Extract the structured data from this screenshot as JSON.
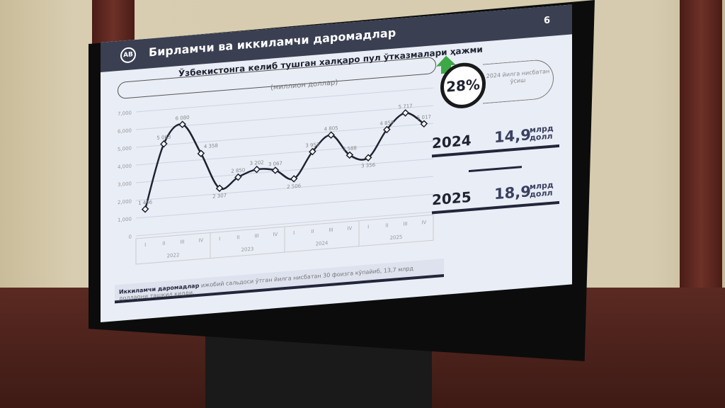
{
  "slide": {
    "page_number": "6",
    "logo": "AB",
    "title": "Бирламчи ва иккиламчи даромадлар",
    "subtitle": "Ўзбекистонга келиб тушган халқаро пул ўтказмалари ҳажми",
    "unit": "(миллион доллар)",
    "note_bold": "Иккиламчи даромадлар",
    "note_text": " ижобий сальдоси ўтган йилга нисбатан 30 фоизга кўпайиб, 13,7 млрд долларни ташкил қилди.",
    "growth": {
      "value": "28%",
      "label": "2024 йилга нисбатан ўсиш",
      "icon": "arrow-up-icon",
      "color": "#3ea846"
    },
    "totals": [
      {
        "year": "2024",
        "value": "14,9",
        "unit_top": "млрд",
        "unit_bottom": "долл"
      },
      {
        "year": "2025",
        "value": "18,9",
        "unit_top": "млрд",
        "unit_bottom": "долл"
      }
    ]
  },
  "chart_data": {
    "type": "line",
    "ylim": [
      0,
      7000
    ],
    "yticks": [
      "0",
      "1,000",
      "2,000",
      "3,000",
      "4,000",
      "5,000",
      "6,000",
      "7,000"
    ],
    "grid": true,
    "quarters": [
      "I",
      "II",
      "III",
      "IV",
      "I",
      "II",
      "III",
      "IV",
      "I",
      "II",
      "III",
      "IV",
      "I",
      "II",
      "III",
      "IV"
    ],
    "years": [
      "2022",
      "2023",
      "2024",
      "2025"
    ],
    "values": [
      1466,
      5063,
      6080,
      4358,
      2307,
      2850,
      3202,
      3067,
      2506,
      3952,
      4805,
      3588,
      3356,
      4859,
      5717,
      5017
    ],
    "labels": [
      "1 466",
      "5 063",
      "6 080",
      "4 358",
      "2 307",
      "2 850",
      "3 202",
      "3 067",
      "2 506",
      "3 952",
      "4 805",
      "3 588",
      "3 356",
      "4 859",
      "5 717",
      "5 017"
    ]
  }
}
